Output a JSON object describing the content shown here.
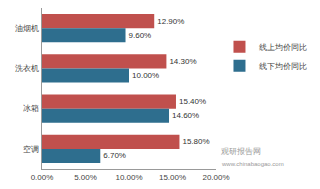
{
  "chart_data": {
    "type": "bar",
    "orientation": "horizontal",
    "categories": [
      "油烟机",
      "洗衣机",
      "冰箱",
      "空调"
    ],
    "series": [
      {
        "name": "线上均价同比",
        "color": "#c0504d",
        "values": [
          12.9,
          14.3,
          15.4,
          15.8
        ],
        "value_labels": [
          "12.90%",
          "14.30%",
          "15.40%",
          "15.80%"
        ]
      },
      {
        "name": "线下均价同比",
        "color": "#2e6e8e",
        "values": [
          9.6,
          10.0,
          14.6,
          6.7
        ],
        "value_labels": [
          "9.60%",
          "10.00%",
          "14.60%",
          "6.70%"
        ]
      }
    ],
    "xlim": [
      0,
      20
    ],
    "xticks": [
      {
        "value": 0,
        "label": "0.00%"
      },
      {
        "value": 5,
        "label": "5.00%"
      },
      {
        "value": 10,
        "label": "10.00%"
      },
      {
        "value": 15,
        "label": "15.00%"
      },
      {
        "value": 20,
        "label": "20.00%"
      }
    ],
    "grid": false,
    "legend": "right",
    "data_labels": true,
    "annotations": [
      "观研报告网",
      "www.chinabaogao.com"
    ]
  }
}
